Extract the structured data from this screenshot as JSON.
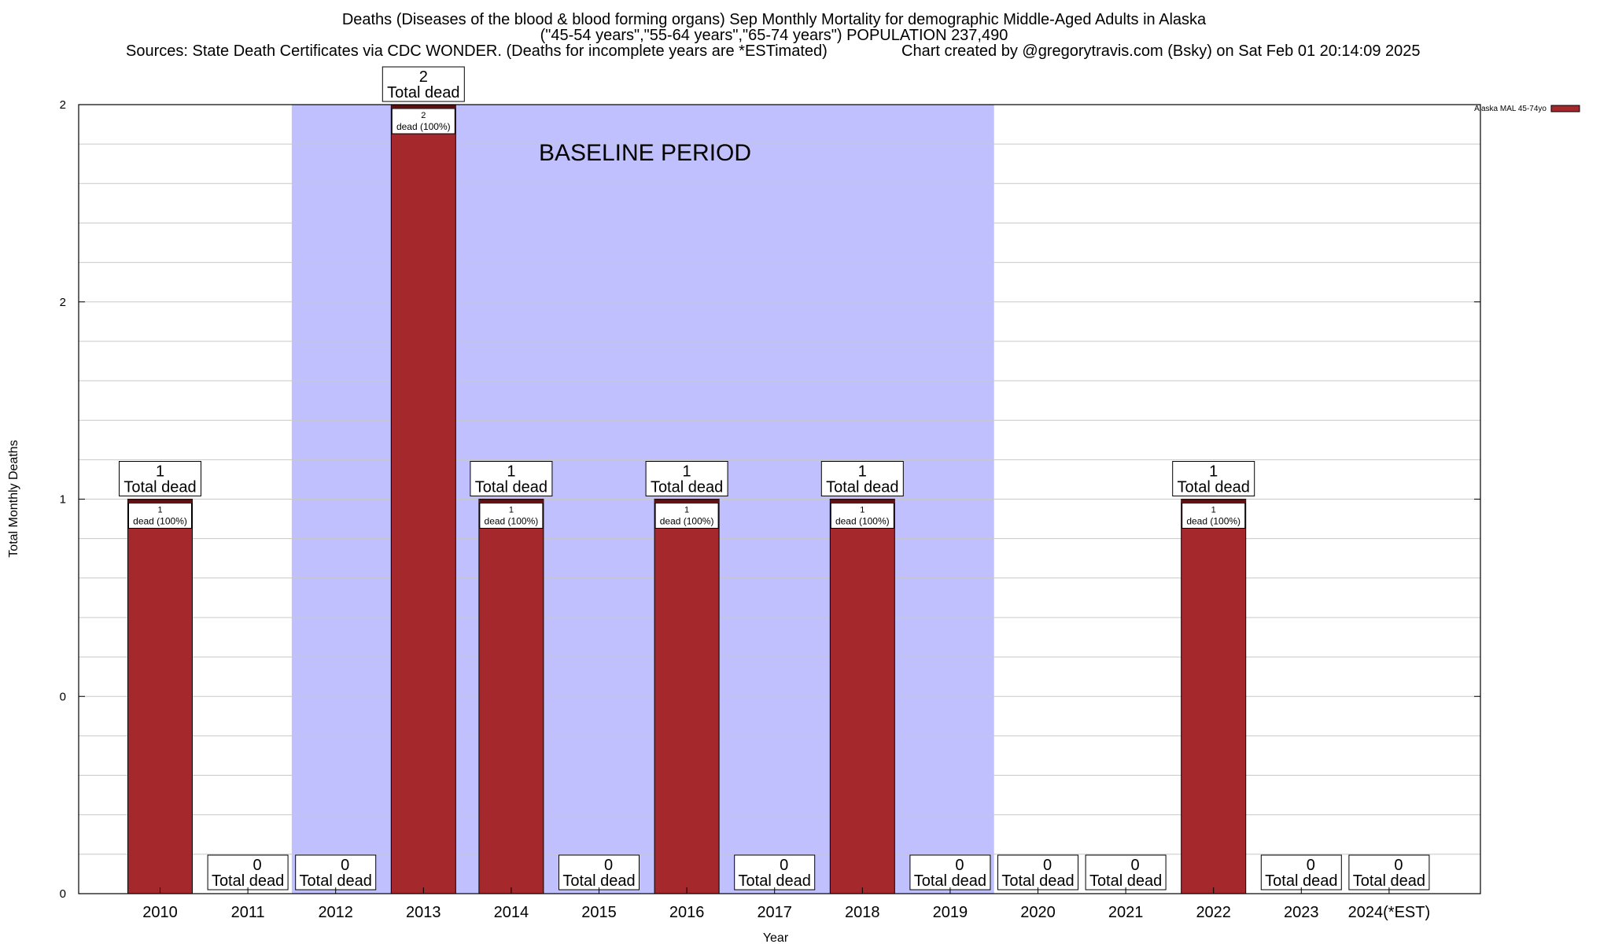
{
  "chart_data": {
    "type": "bar",
    "title_lines": [
      "Deaths (Diseases of the blood & blood forming organs) Sep Monthly Mortality for demographic Middle-Aged Adults in Alaska",
      "(\"45-54 years\",\"55-64 years\",\"65-74 years\") POPULATION 237,490"
    ],
    "source_left": "Sources: State Death Certificates via CDC WONDER. (Deaths for incomplete years are *ESTimated)",
    "source_right": "Chart created by @gregorytravis.com (Bsky) on Sat Feb 01 20:14:09 2025",
    "xlabel": "Year",
    "ylabel": "Total Monthly Deaths",
    "ylim": [
      0,
      2
    ],
    "ytick_values": [
      0,
      0.5,
      1,
      1.5,
      2
    ],
    "ytick_labels": [
      "0",
      "0",
      "1",
      "2",
      "2"
    ],
    "grid": true,
    "categories": [
      "2010",
      "2011",
      "2012",
      "2013",
      "2014",
      "2015",
      "2016",
      "2017",
      "2018",
      "2019",
      "2020",
      "2021",
      "2022",
      "2023",
      "2024(*EST)"
    ],
    "values": [
      1,
      0,
      0,
      2,
      1,
      0,
      1,
      0,
      1,
      0,
      0,
      0,
      1,
      0,
      0
    ],
    "total_label_suffix": "Total dead",
    "inner_label_suffix": "dead (100%)",
    "baseline": {
      "label": "BASELINE PERIOD",
      "start": "2012",
      "end": "2019",
      "color": "#c0c0ff"
    },
    "legend": {
      "label": "Alaska MAL 45-74yo",
      "position": "top-right"
    },
    "colors": {
      "bar": "#a4282c",
      "bar_top": "#5a0f12",
      "grid": "#c8c8c8"
    }
  }
}
